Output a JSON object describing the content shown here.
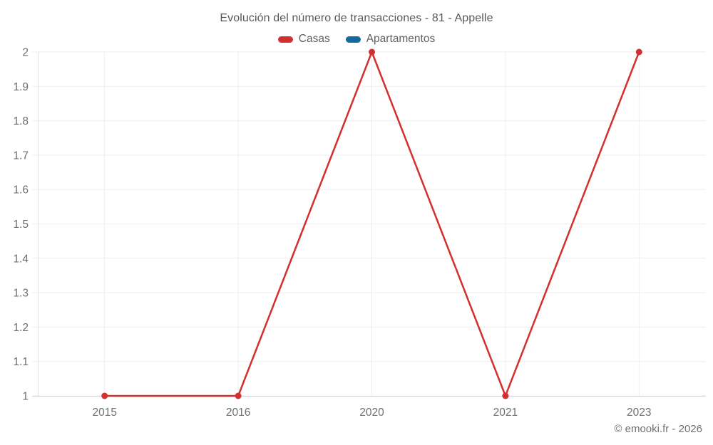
{
  "title": "Evolución del número de transacciones - 81 - Appelle",
  "legend": [
    {
      "label": "Casas",
      "color": "#d2302f"
    },
    {
      "label": "Apartamentos",
      "color": "#16699c"
    }
  ],
  "footer": {
    "copyright": "© emooki.fr - 2026"
  },
  "colors": {
    "casas": "#d2302f",
    "apartamentos": "#16699c",
    "grid": "#ededed",
    "axis": "#d9d9d9",
    "axis_left": "#e3e3e3",
    "tick_text": "#707073",
    "title_text": "#58595b"
  },
  "chart_data": {
    "type": "line",
    "title": "Evolución del número de transacciones - 81 - Appelle",
    "categories": [
      "2015",
      "2016",
      "2020",
      "2021",
      "2023"
    ],
    "series": [
      {
        "name": "Casas",
        "color": "#d2302f",
        "values": [
          1,
          1,
          2,
          1,
          2
        ]
      },
      {
        "name": "Apartamentos",
        "color": "#16699c",
        "values": []
      }
    ],
    "xlabel": "",
    "ylabel": "",
    "ylim": [
      1,
      2
    ],
    "y_tick_values": [
      1,
      1.1,
      1.2,
      1.3,
      1.4,
      1.5,
      1.6,
      1.7,
      1.8,
      1.9,
      2
    ],
    "y_tick_labels": [
      "1",
      "1.1",
      "1.2",
      "1.3",
      "1.4",
      "1.5",
      "1.6",
      "1.7",
      "1.8",
      "1.9",
      "2"
    ],
    "grid": true,
    "legend_position": "top",
    "marker_radius": 4.5,
    "line_width": 2.5
  }
}
